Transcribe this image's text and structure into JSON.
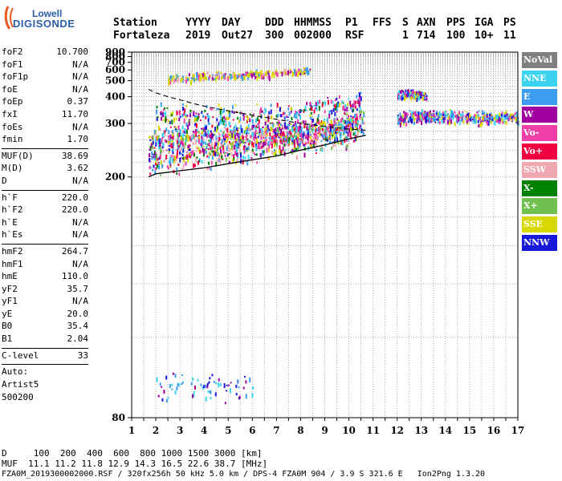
{
  "logo": {
    "top": "Lowell",
    "bottom": "DIGISONDE"
  },
  "header": {
    "labels": [
      "Station",
      "YYYY",
      "DAY",
      "DDD",
      "HHMMSS",
      "P1",
      "FFS",
      "S",
      "AXN",
      "PPS",
      "IGA",
      "PS"
    ],
    "values": [
      "Fortaleza",
      "2019",
      "Out27",
      "300",
      "002000",
      "RSF",
      "1",
      "714",
      "100",
      "10+",
      "11"
    ]
  },
  "params": {
    "group1": [
      {
        "name": "foF2",
        "value": "10.700"
      },
      {
        "name": "foF1",
        "value": "N/A"
      },
      {
        "name": "foF1p",
        "value": "N/A"
      },
      {
        "name": "foE",
        "value": "N/A"
      },
      {
        "name": "foEp",
        "value": "0.37"
      },
      {
        "name": "fxI",
        "value": "11.70"
      },
      {
        "name": "foEs",
        "value": "N/A"
      },
      {
        "name": "fmin",
        "value": "1.70"
      }
    ],
    "group2": [
      {
        "name": "MUF(D)",
        "value": "38.69"
      },
      {
        "name": "M(D)",
        "value": "3.62"
      },
      {
        "name": "D",
        "value": "N/A"
      }
    ],
    "group3": [
      {
        "name": "h`F",
        "value": "220.0"
      },
      {
        "name": "h`F2",
        "value": "220.0"
      },
      {
        "name": "h`E",
        "value": "N/A"
      },
      {
        "name": "h`Es",
        "value": "N/A"
      }
    ],
    "group4": [
      {
        "name": "hmF2",
        "value": "264.7"
      },
      {
        "name": "hmF1",
        "value": "N/A"
      },
      {
        "name": "hmE",
        "value": "110.0"
      },
      {
        "name": "yF2",
        "value": "35.7"
      },
      {
        "name": "yF1",
        "value": "N/A"
      },
      {
        "name": "yE",
        "value": "20.0"
      },
      {
        "name": "B0",
        "value": "35.4"
      },
      {
        "name": "B1",
        "value": "2.04"
      }
    ],
    "group5": [
      {
        "name": "C-level",
        "value": "33"
      }
    ],
    "auto": [
      "Auto:",
      "Artist5",
      "500200"
    ]
  },
  "legend": [
    {
      "label": "NoVal",
      "color": "#808080"
    },
    {
      "label": "NNE",
      "color": "#3bd3f0"
    },
    {
      "label": "E",
      "color": "#3c9cf0"
    },
    {
      "label": "W",
      "color": "#a000a0"
    },
    {
      "label": "Vo-",
      "color": "#f040a8"
    },
    {
      "label": "Vo+",
      "color": "#f00040"
    },
    {
      "label": "SSW",
      "color": "#f0a8b0"
    },
    {
      "label": "X-",
      "color": "#008000"
    },
    {
      "label": "X+",
      "color": "#70c050"
    },
    {
      "label": "SSE",
      "color": "#d8d800"
    },
    {
      "label": "NNW",
      "color": "#1818d8"
    }
  ],
  "chart_data": {
    "type": "scatter",
    "xlim": [
      1,
      17
    ],
    "ylim": [
      80,
      900
    ],
    "x_ticks": [
      "1",
      "2",
      "3",
      "4",
      "5",
      "6",
      "7",
      "8",
      "9",
      "10",
      "11",
      "12",
      "13",
      "14",
      "15",
      "16",
      "17"
    ],
    "y_ticks": [
      "80",
      "200",
      "300",
      "400",
      "500",
      "600",
      "700",
      "800",
      "900"
    ],
    "y_scale": "reciprocal",
    "grid": true,
    "series": [
      {
        "name": "trace-lower",
        "points": [
          [
            1.7,
            222
          ],
          [
            2,
            230
          ],
          [
            3,
            232
          ],
          [
            4,
            236
          ],
          [
            5,
            242
          ],
          [
            6,
            246
          ],
          [
            7,
            252
          ],
          [
            8,
            260
          ],
          [
            9,
            270
          ],
          [
            10,
            277
          ],
          [
            10.6,
            292
          ]
        ]
      },
      {
        "name": "trace-mid",
        "points": [
          [
            1.7,
            250
          ],
          [
            2,
            258
          ],
          [
            3,
            264
          ],
          [
            4,
            268
          ],
          [
            5,
            272
          ],
          [
            6,
            276
          ],
          [
            7,
            280
          ],
          [
            8,
            286
          ],
          [
            9,
            294
          ],
          [
            10,
            305
          ],
          [
            10.6,
            330
          ]
        ]
      },
      {
        "name": "trace-upper",
        "points": [
          [
            2,
            320
          ],
          [
            3,
            318
          ],
          [
            4,
            318
          ],
          [
            5,
            316
          ],
          [
            6,
            318
          ],
          [
            7,
            322
          ],
          [
            8,
            330
          ],
          [
            9,
            345
          ],
          [
            10,
            360
          ],
          [
            10.5,
            390
          ]
        ]
      },
      {
        "name": "trace-high",
        "points": [
          [
            2.5,
            520
          ],
          [
            3,
            530
          ],
          [
            4,
            545
          ],
          [
            5,
            555
          ],
          [
            6,
            565
          ],
          [
            7,
            580
          ],
          [
            8,
            600
          ],
          [
            8.4,
            610
          ]
        ]
      },
      {
        "name": "trace-remote",
        "points": [
          [
            12,
            420
          ],
          [
            13,
            415
          ],
          [
            13.2,
            410
          ]
        ]
      },
      {
        "name": "trace-band",
        "points": [
          [
            12,
            320
          ],
          [
            13,
            325
          ],
          [
            14,
            325
          ],
          [
            15,
            322
          ],
          [
            16,
            322
          ],
          [
            17,
            322
          ]
        ]
      },
      {
        "name": "trace-low",
        "points": [
          [
            2,
            86
          ],
          [
            3,
            87
          ],
          [
            4,
            87
          ],
          [
            5,
            87
          ],
          [
            6,
            87
          ]
        ]
      }
    ],
    "profile": {
      "name": "profile-solid",
      "points": [
        [
          1.7,
          200
        ],
        [
          2,
          204
        ],
        [
          3,
          208
        ],
        [
          4,
          212
        ],
        [
          5,
          218
        ],
        [
          6,
          224
        ],
        [
          7,
          230
        ],
        [
          8,
          240
        ],
        [
          9,
          250
        ],
        [
          10,
          262
        ],
        [
          10.7,
          270
        ]
      ]
    },
    "profile_dashed": {
      "name": "profile-dashed",
      "points": [
        [
          1.7,
          440
        ],
        [
          2,
          420
        ],
        [
          2.5,
          400
        ],
        [
          3,
          385
        ],
        [
          3.5,
          370
        ],
        [
          4,
          358
        ],
        [
          5,
          340
        ],
        [
          6,
          325
        ],
        [
          7,
          312
        ],
        [
          8,
          300
        ],
        [
          9,
          292
        ],
        [
          10,
          285
        ],
        [
          10.7,
          282
        ]
      ]
    }
  },
  "bottom": {
    "line1": "D     100  200  400  600  800 1000 1500 3000 [km]",
    "line2": "MUF  11.1 11.2 11.8 12.9 14.3 16.5 22.6 38.7 [MHz]",
    "line3": "FZA0M_2019300002000.RSF / 320fx256h 50 kHz 5.0 km / DPS-4 FZA0M 904 / 3.9 S 321.6 E   Ion2Png 1.3.20"
  }
}
